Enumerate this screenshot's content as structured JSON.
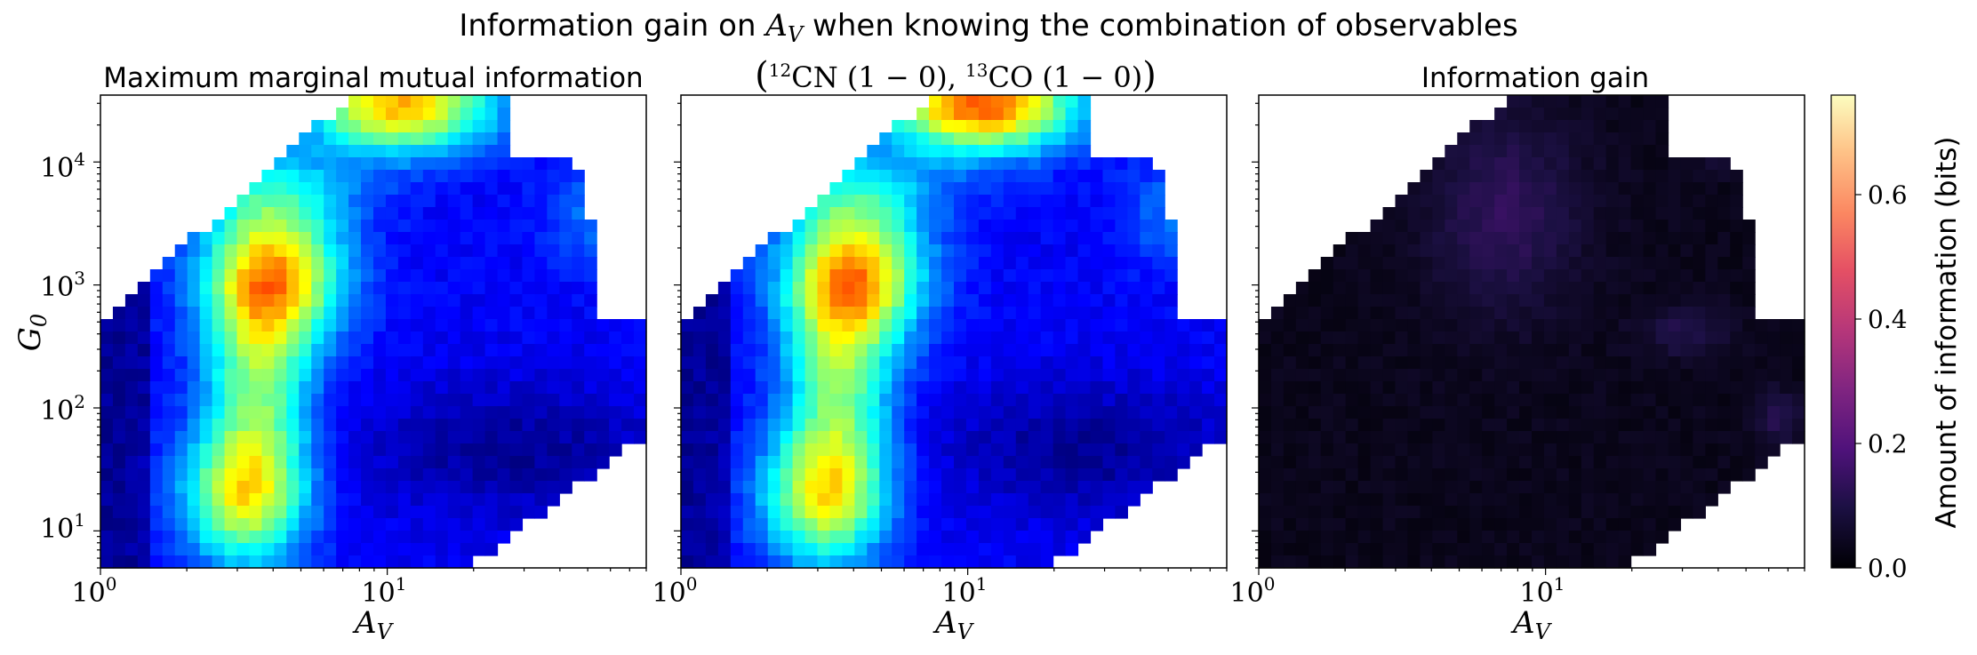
{
  "figure": {
    "suptitle_prefix": "Information gain on ",
    "suptitle_var": "A",
    "suptitle_var_sub": "V",
    "suptitle_suffix": " when knowing the combination of observables"
  },
  "chart_data": [
    {
      "type": "heatmap",
      "title": "Maximum marginal mutual information",
      "xlabel": "A_V",
      "ylabel": "G_0",
      "x_scale": "log",
      "y_scale": "log",
      "xlim": [
        1,
        80
      ],
      "ylim": [
        5,
        35000
      ],
      "xticks": [
        1,
        10
      ],
      "yticks": [
        10,
        100,
        1000,
        10000
      ],
      "colormap": "jet",
      "colorbar": false,
      "description_values": "Mutual information (bits) on an AV x G0 grid; highs of ~0.55-0.65 at AV~20, G0~2e4; ~0.5 at AV~4, G0~1e3 and AV~3, G0~10"
    },
    {
      "type": "heatmap",
      "title_prefix": "(",
      "title_iso1": "12",
      "title_line1": "CN (1 − 0), ",
      "title_iso2": "13",
      "title_line2": "CO (1 − 0)",
      "title_suffix": ")",
      "xlabel": "A_V",
      "x_scale": "log",
      "y_scale": "log",
      "xlim": [
        1,
        80
      ],
      "ylim": [
        5,
        35000
      ],
      "xticks": [
        1,
        10
      ],
      "colormap": "jet",
      "colorbar": false
    },
    {
      "type": "heatmap",
      "title": "Information gain",
      "xlabel": "A_V",
      "x_scale": "log",
      "y_scale": "log",
      "xlim": [
        1,
        80
      ],
      "ylim": [
        5,
        35000
      ],
      "xticks": [
        1,
        10
      ],
      "colormap": "magma",
      "colorbar": {
        "label": "Amount of information (bits)",
        "range": [
          0,
          0.76
        ],
        "ticks": [
          0.0,
          0.2,
          0.4,
          0.6
        ],
        "tick_labels": [
          "0.0",
          "0.2",
          "0.4",
          "0.6"
        ]
      }
    }
  ],
  "tick_labels": {
    "x_base": "10",
    "x_exp0": "0",
    "x_exp1": "1",
    "y_base": "10",
    "y_exp": [
      "1",
      "2",
      "3",
      "4"
    ]
  }
}
